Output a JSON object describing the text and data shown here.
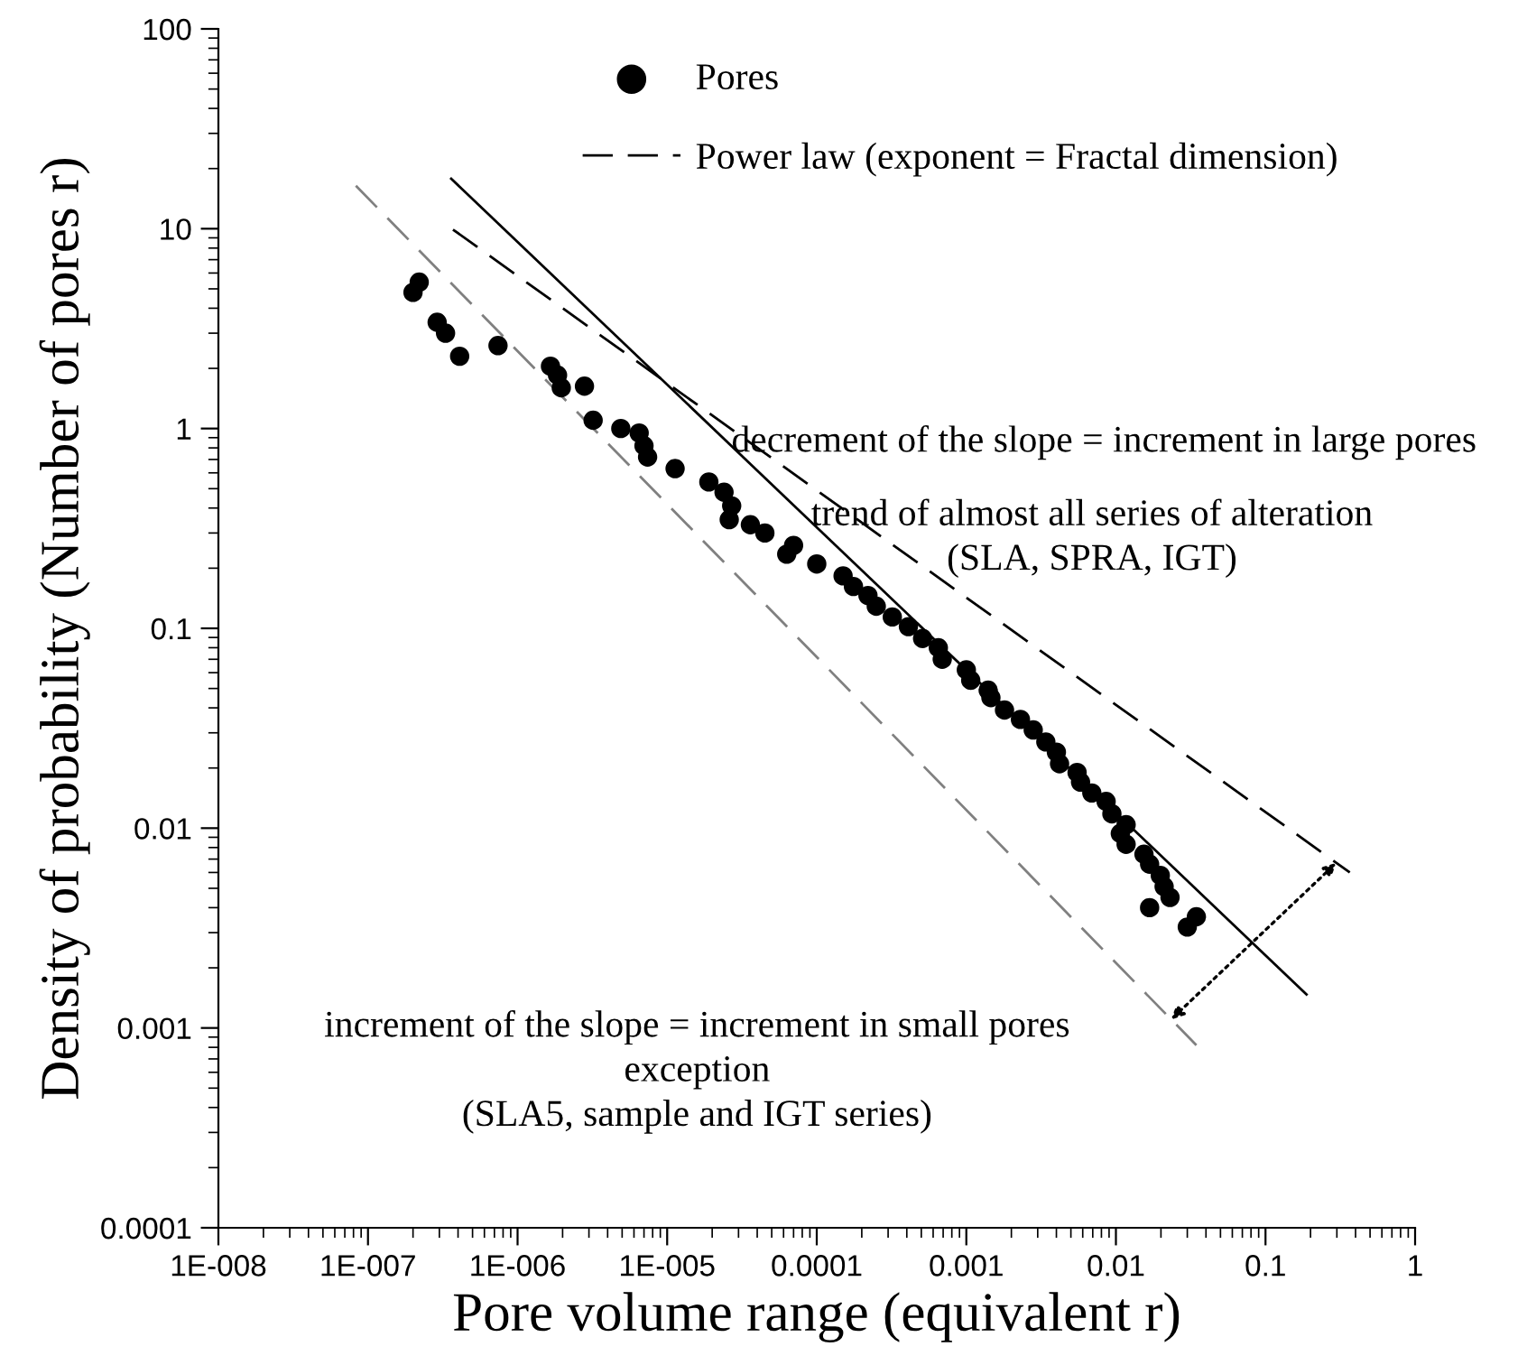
{
  "chart_data": {
    "type": "scatter",
    "xlabel": "Pore volume range (equivalent r)",
    "ylabel": "Density of probability (Number of pores r)",
    "log": "xy",
    "grid": false,
    "legend": "top",
    "xlim": [
      1e-08,
      1
    ],
    "ylim": [
      0.0001,
      100
    ],
    "xticks": [
      {
        "value": 1e-08,
        "label": "1E-008"
      },
      {
        "value": 1e-07,
        "label": "1E-007"
      },
      {
        "value": 1e-06,
        "label": "1E-006"
      },
      {
        "value": 1e-05,
        "label": "1E-005"
      },
      0.0001,
      0.001,
      0.01,
      0.1,
      1
    ],
    "yticks": [
      0.0001,
      0.001,
      0.01,
      0.1,
      1,
      10,
      100
    ],
    "series": [
      {
        "name": "Pores",
        "marker": "circle",
        "color": "#000000",
        "x": [
          2e-07,
          2.2e-07,
          2.9e-07,
          3.3e-07,
          4.1e-07,
          7.4e-07,
          1.66e-06,
          1.85e-06,
          1.96e-06,
          2.8e-06,
          3.2e-06,
          4.9e-06,
          6.5e-06,
          7e-06,
          7.4e-06,
          1.13e-05,
          1.9e-05,
          2.4e-05,
          2.7e-05,
          2.6e-05,
          3.6e-05,
          4.5e-05,
          7e-05,
          6.3e-05,
          0.0001,
          0.00015,
          0.000176,
          0.00022,
          0.00025,
          0.00032,
          0.00041,
          0.00051,
          0.00065,
          0.00069,
          0.001,
          0.00107,
          0.0014,
          0.00146,
          0.0018,
          0.0023,
          0.0028,
          0.0034,
          0.004,
          0.0042,
          0.0055,
          0.0058,
          0.0069,
          0.0086,
          0.0094,
          0.0117,
          0.0107,
          0.0117,
          0.0154,
          0.0168,
          0.0198,
          0.021,
          0.023,
          0.0168,
          0.0345,
          0.03
        ],
        "values": [
          4.8,
          5.4,
          3.4,
          3.0,
          2.3,
          2.6,
          2.05,
          1.85,
          1.6,
          1.63,
          1.1,
          1.0,
          0.95,
          0.82,
          0.72,
          0.63,
          0.54,
          0.48,
          0.41,
          0.35,
          0.33,
          0.3,
          0.26,
          0.235,
          0.21,
          0.183,
          0.162,
          0.146,
          0.129,
          0.114,
          0.102,
          0.089,
          0.08,
          0.07,
          0.062,
          0.055,
          0.049,
          0.045,
          0.039,
          0.035,
          0.031,
          0.027,
          0.024,
          0.021,
          0.019,
          0.017,
          0.015,
          0.0136,
          0.0118,
          0.0104,
          0.0094,
          0.0083,
          0.0074,
          0.0066,
          0.0058,
          0.0051,
          0.0045,
          0.004,
          0.0036,
          0.0032
        ]
      },
      {
        "name": "Power law (exponent = Fractal dimension)",
        "type": "line",
        "line_style": "dashed",
        "color": "#000000",
        "x": [
          3.7e-07,
          0.366
        ],
        "values": [
          9.9,
          0.006
        ]
      },
      {
        "type": "line",
        "line_style": "solid",
        "color": "#000000",
        "x": [
          3.6e-07,
          0.188
        ],
        "values": [
          17.8,
          0.00147
        ]
      },
      {
        "type": "line",
        "line_style": "dashed",
        "color": "#808080",
        "x": [
          8.3e-08,
          0.0345
        ],
        "values": [
          16.4,
          0.00082
        ]
      }
    ],
    "annotations": [
      "decrement of the slope = increment in large pores",
      "trend of almost all series of alteration\n(SLA, SPRA, IGT)",
      "increment of the slope = increment in small pores\nexception\n(SLA5, sample and IGT series)"
    ]
  }
}
